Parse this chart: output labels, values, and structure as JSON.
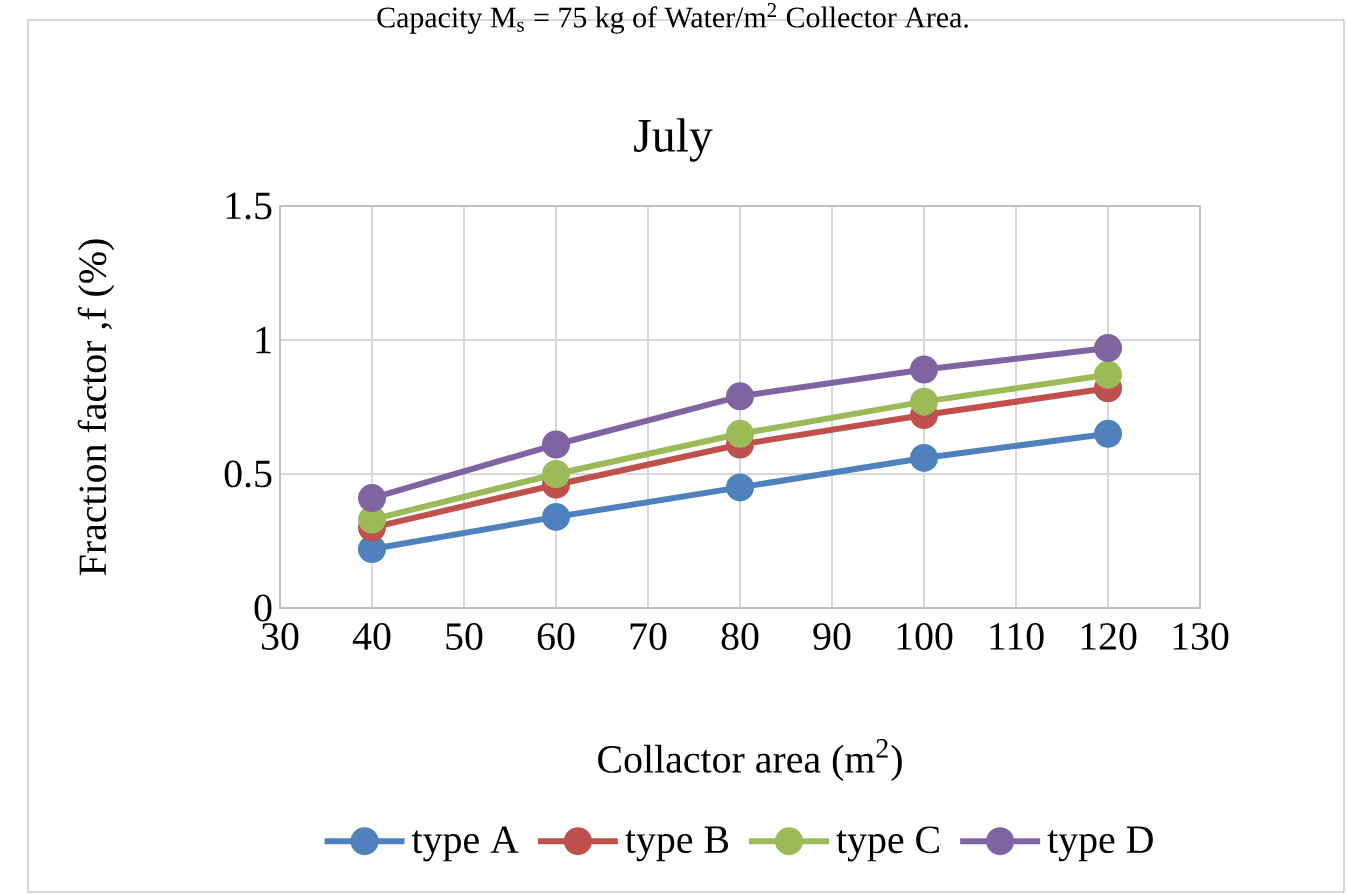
{
  "chart_data": {
    "type": "line",
    "title": "July",
    "xlabel": "Collactor area (m$^{2}$)",
    "ylabel": "Fraction factor ,f (%)",
    "annotations": [
      "Capacity M$_{s}$ = 75 kg of Water/m$^{2}$ Collector Area."
    ],
    "x": [
      40,
      60,
      80,
      100,
      120
    ],
    "series": [
      {
        "name": "type A",
        "color": "#4f81bd",
        "values": [
          0.22,
          0.34,
          0.45,
          0.56,
          0.65
        ]
      },
      {
        "name": "type B",
        "color": "#c0504d",
        "values": [
          0.3,
          0.46,
          0.61,
          0.72,
          0.82
        ]
      },
      {
        "name": "type C",
        "color": "#9bbb59",
        "values": [
          0.33,
          0.5,
          0.65,
          0.77,
          0.87
        ]
      },
      {
        "name": "type D",
        "color": "#8064a2",
        "values": [
          0.41,
          0.61,
          0.79,
          0.89,
          0.97
        ]
      }
    ],
    "xlim": [
      30,
      130
    ],
    "xticks": [
      30,
      40,
      50,
      60,
      70,
      80,
      90,
      100,
      110,
      120,
      130
    ],
    "ylim": [
      0,
      1.5
    ],
    "yticks": [
      0,
      0.5,
      1,
      1.5
    ],
    "grid": true,
    "legend": "bottom",
    "marker": "circle",
    "line_style": "solid"
  }
}
